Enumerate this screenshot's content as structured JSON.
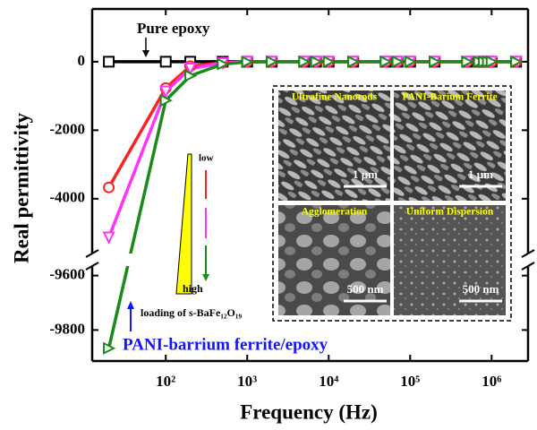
{
  "chart_data": {
    "type": "line",
    "x_label": "Frequency (Hz)",
    "y_label": "Real permittivity",
    "xscale": "log",
    "xlim": [
      12.5,
      2800000
    ],
    "xticks": [
      {
        "value": 100,
        "label": "10²"
      },
      {
        "value": 1000,
        "label": "10³"
      },
      {
        "value": 10000,
        "label": "10⁴"
      },
      {
        "value": 100000,
        "label": "10⁵"
      },
      {
        "value": 1000000,
        "label": "10⁶"
      }
    ],
    "ylim": [
      -9914,
      1540
    ],
    "ybreak": [
      -9565,
      -5600
    ],
    "yticks": [
      0,
      -2000,
      -4000,
      -9600,
      -9800
    ],
    "x": [
      20,
      100,
      200,
      500,
      1000,
      2000,
      5000,
      7000,
      10000,
      20000,
      50000,
      70000,
      100000,
      200000,
      500000,
      700000,
      800000,
      900000,
      1000000,
      2000000
    ],
    "series": [
      {
        "name": "Pure epoxy",
        "color": "#000000",
        "marker": "square",
        "values": [
          0,
          0,
          0,
          0,
          0,
          0,
          0,
          0,
          0,
          0,
          0,
          0,
          0,
          0,
          0,
          0,
          0,
          0,
          0,
          0
        ]
      },
      {
        "color": "#ff2020",
        "marker": "circle",
        "values": [
          -3670,
          -770,
          -130,
          -30,
          0,
          0,
          0,
          0,
          0,
          0,
          0,
          0,
          0,
          0,
          0,
          0,
          0,
          0,
          0,
          0
        ]
      },
      {
        "color": "#ff33ff",
        "marker": "triangle-down",
        "values": [
          -5130,
          -870,
          -200,
          -40,
          0,
          0,
          0,
          0,
          0,
          0,
          0,
          0,
          0,
          0,
          0,
          0,
          0,
          0,
          0,
          0
        ]
      },
      {
        "color": "#1a8a1a",
        "marker": "triangle-right",
        "values": [
          -9867,
          -1130,
          -410,
          -70,
          -5,
          0,
          0,
          0,
          0,
          0,
          0,
          0,
          0,
          0,
          0,
          0,
          0,
          0,
          0,
          0
        ]
      }
    ],
    "annotations": {
      "low": "low",
      "high": "high",
      "loading": "loading of s-BaFe₁₂O₁₉",
      "composite": "PANI-barrium ferrite/epoxy"
    },
    "inset": {
      "panels": [
        {
          "label": "Ultrafine Nanorods",
          "scale": "1 μm"
        },
        {
          "label": "PANI-Barium Ferrite",
          "scale": "1 μm"
        },
        {
          "label": "Agglomeration",
          "scale": "500 nm"
        },
        {
          "label": "Uniform Dispersion",
          "scale": "500 nm"
        }
      ]
    }
  }
}
